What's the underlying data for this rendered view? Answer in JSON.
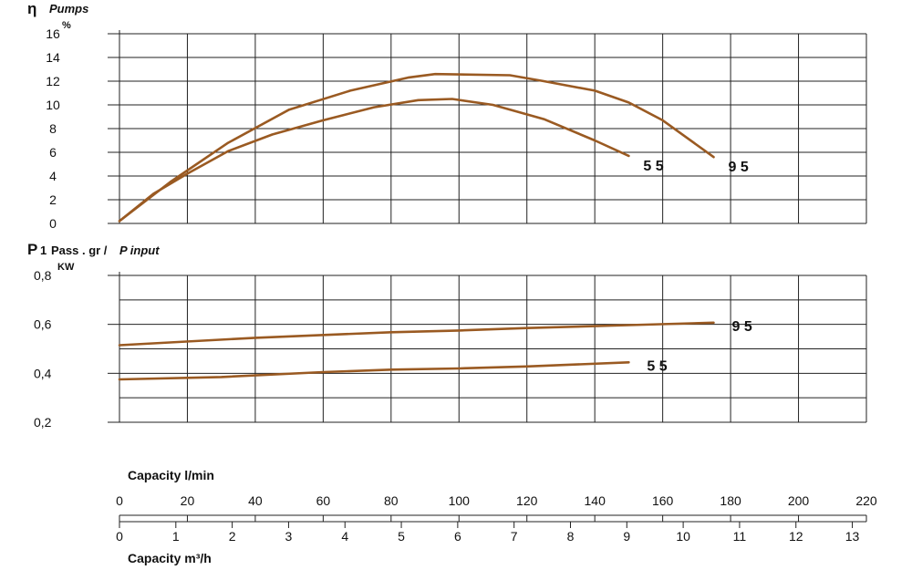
{
  "chart_data": [
    {
      "type": "line",
      "ylabel_symbol": "η",
      "ylabel": "Pumps",
      "yunit": "%",
      "ylim": [
        0,
        16
      ],
      "yticks": [
        "0",
        "2",
        "4",
        "6",
        "8",
        "10",
        "12",
        "14",
        "16"
      ],
      "xlim": [
        0,
        220
      ],
      "grid": true,
      "series": [
        {
          "name": "5 5",
          "label": "5  5",
          "color": "#9a5a22",
          "x": [
            0,
            10,
            20,
            32,
            45,
            60,
            75,
            88,
            98,
            110,
            125,
            140,
            150
          ],
          "y": [
            0.2,
            2.5,
            4.2,
            6.1,
            7.5,
            8.7,
            9.8,
            10.4,
            10.5,
            10.0,
            8.8,
            7.0,
            5.7
          ]
        },
        {
          "name": "9 5",
          "label": "9  5",
          "color": "#9a5a22",
          "x": [
            0,
            15,
            32,
            50,
            68,
            85,
            93,
            115,
            125,
            140,
            150,
            160,
            175
          ],
          "y": [
            0.2,
            3.5,
            6.8,
            9.6,
            11.2,
            12.3,
            12.6,
            12.5,
            12.0,
            11.2,
            10.2,
            8.7,
            5.6
          ]
        }
      ]
    },
    {
      "type": "line",
      "ylabel_symbol": "P",
      "ylabel_sub": "1",
      "ylabel": "Pass . gr / P input",
      "yunit": "KW",
      "ylim": [
        0.2,
        0.8
      ],
      "yticks": [
        "0,2",
        "0,4",
        "0,6",
        "0,8"
      ],
      "xlim": [
        0,
        220
      ],
      "grid": true,
      "series": [
        {
          "name": "9 5",
          "label": "9  5",
          "color": "#9a5a22",
          "x": [
            0,
            40,
            80,
            100,
            120,
            150,
            175
          ],
          "y": [
            0.515,
            0.545,
            0.568,
            0.575,
            0.585,
            0.597,
            0.607
          ]
        },
        {
          "name": "5 5",
          "label": "5  5",
          "color": "#9a5a22",
          "x": [
            0,
            30,
            60,
            80,
            100,
            120,
            150
          ],
          "y": [
            0.375,
            0.385,
            0.405,
            0.415,
            0.42,
            0.428,
            0.445
          ]
        }
      ]
    }
  ],
  "axes": {
    "lpm_title": "Capacity l/min",
    "lpm_ticks": [
      "0",
      "20",
      "40",
      "60",
      "80",
      "100",
      "120",
      "140",
      "160",
      "180",
      "200",
      "220"
    ],
    "m3h_title": "Capacity m³/h",
    "m3h_ticks": [
      "0",
      "1",
      "2",
      "3",
      "4",
      "5",
      "6",
      "7",
      "8",
      "9",
      "10",
      "11",
      "12",
      "13"
    ]
  }
}
